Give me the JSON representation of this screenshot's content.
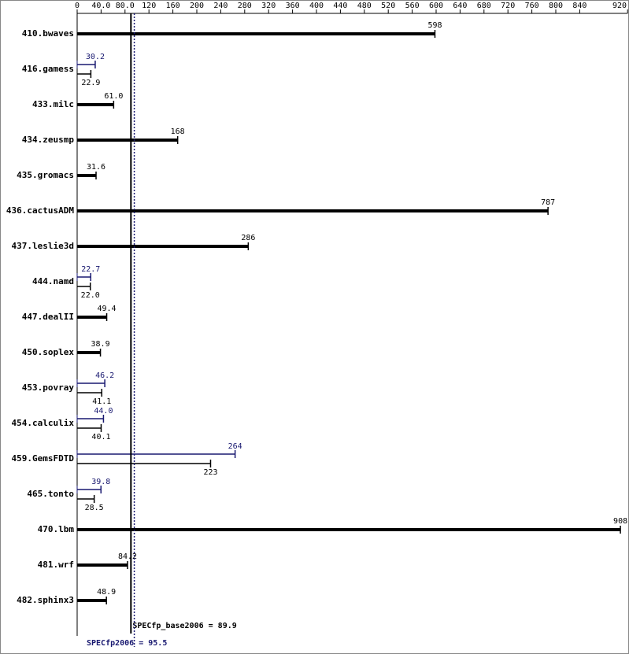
{
  "chart_data": {
    "type": "bar",
    "orientation": "horizontal",
    "categories": [
      "410.bwaves",
      "416.gamess",
      "433.milc",
      "434.zeusmp",
      "435.gromacs",
      "436.cactusADM",
      "437.leslie3d",
      "444.namd",
      "447.dealII",
      "450.soplex",
      "453.povray",
      "454.calculix",
      "459.GemsFDTD",
      "465.tonto",
      "470.lbm",
      "481.wrf",
      "482.sphinx3"
    ],
    "series": [
      {
        "name": "SPECfp_base2006",
        "color": "#000000",
        "values": [
          598,
          22.9,
          61,
          168,
          31.6,
          787,
          286,
          22,
          49.4,
          38.9,
          41.1,
          40.1,
          223,
          28.5,
          908,
          84.2,
          48.9
        ],
        "value_labels": [
          "598",
          "22.9",
          "61.0",
          "168",
          "31.6",
          "787",
          "286",
          "22.0",
          "49.4",
          "38.9",
          "41.1",
          "40.1",
          "223",
          "28.5",
          "908",
          "84.2",
          "48.9"
        ]
      },
      {
        "name": "SPECfp2006",
        "color": "#191970",
        "values": [
          null,
          30.2,
          null,
          null,
          null,
          null,
          null,
          22.7,
          null,
          null,
          46.2,
          44,
          264,
          39.8,
          null,
          null,
          null
        ],
        "value_labels": [
          null,
          "30.2",
          null,
          null,
          null,
          null,
          null,
          "22.7",
          null,
          null,
          "46.2",
          "44.0",
          "264",
          "39.8",
          null,
          null,
          null
        ]
      }
    ],
    "xlim": [
      0,
      920
    ],
    "xticks": [
      0,
      {
        "value": 40,
        "label": "40.0"
      },
      {
        "value": 80,
        "label": "80.0"
      },
      120,
      160,
      200,
      240,
      280,
      320,
      360,
      400,
      440,
      480,
      520,
      560,
      600,
      640,
      680,
      720,
      760,
      800,
      840,
      920
    ],
    "reference_lines": [
      {
        "label": "SPECfp_base2006 = 89.9",
        "value": 89.9,
        "color": "#000000"
      },
      {
        "label": "SPECfp2006 = 95.5",
        "value": 95.5,
        "color": "#191970"
      }
    ]
  }
}
